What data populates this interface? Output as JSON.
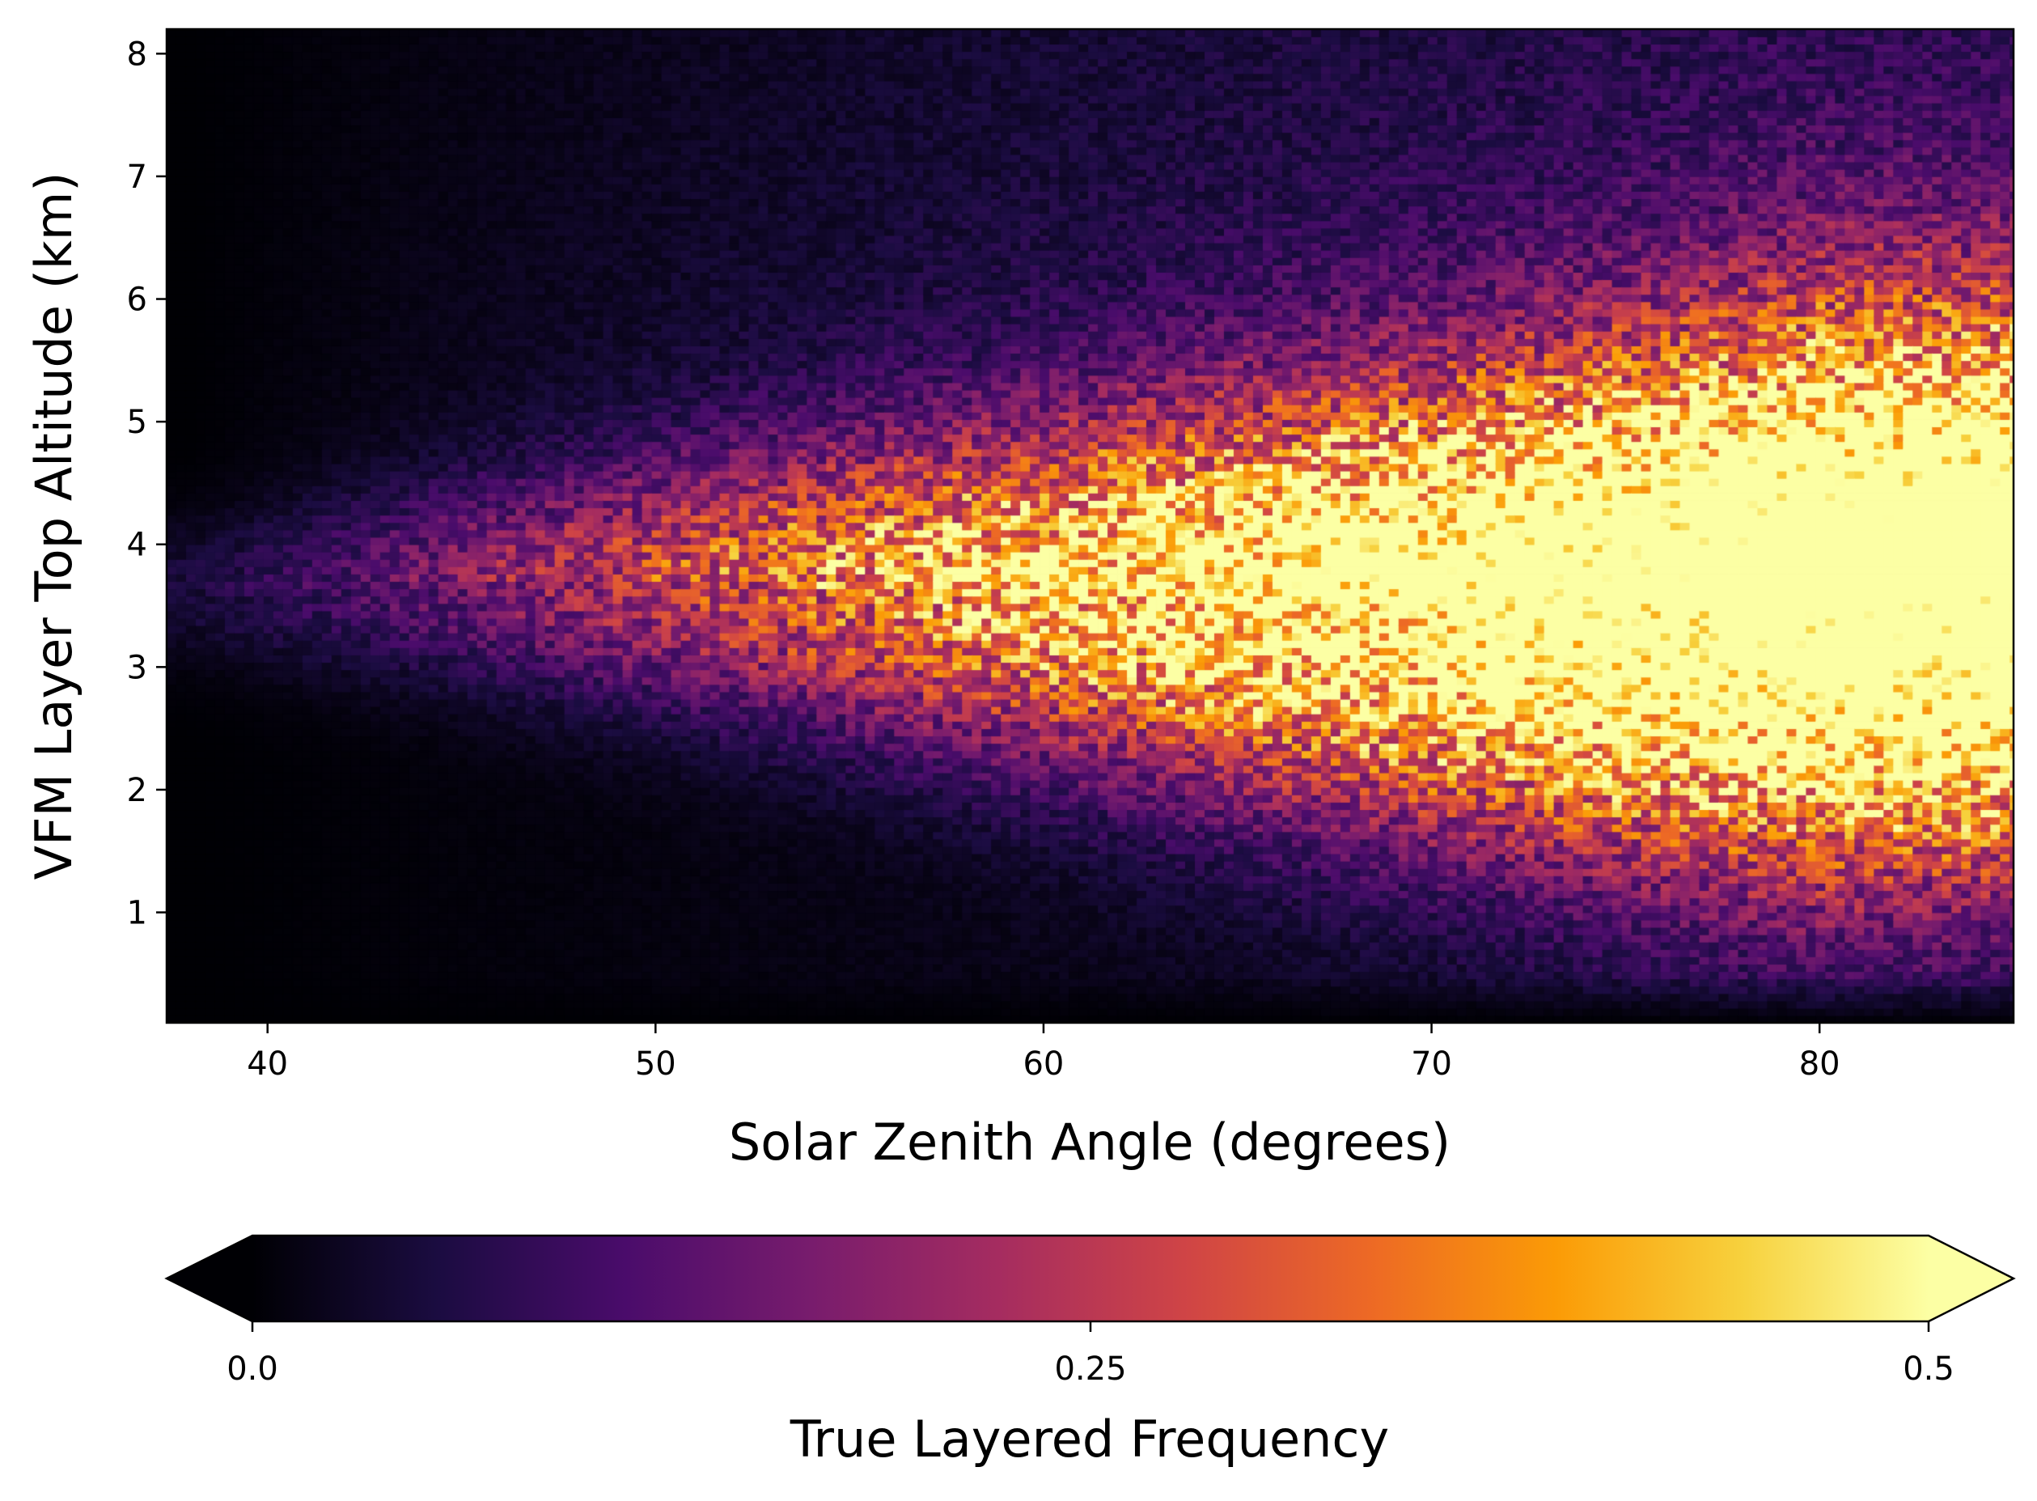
{
  "chart_data": {
    "type": "heatmap",
    "title": "",
    "xlabel": "Solar Zenith Angle (degrees)",
    "ylabel": "VFM Layer Top Altitude (km)",
    "xlim": [
      37.4,
      85.0
    ],
    "ylim": [
      0.1,
      8.2
    ],
    "x_bin_width_deg": 0.25,
    "y_bin_width_km": 0.06,
    "x_ticks": [
      40,
      50,
      60,
      70,
      80
    ],
    "x_tick_labels": [
      "40",
      "50",
      "60",
      "70",
      "80"
    ],
    "y_ticks": [
      1,
      2,
      3,
      4,
      5,
      6,
      7,
      8
    ],
    "y_tick_labels": [
      "1",
      "2",
      "3",
      "4",
      "5",
      "6",
      "7",
      "8"
    ],
    "colorbar": {
      "label": "True Layered Frequency",
      "colormap": "inferno",
      "vmin": 0.0,
      "vmax": 0.5,
      "extend": "both",
      "orientation": "horizontal",
      "ticks": [
        0.0,
        0.25,
        0.5
      ],
      "tick_labels": [
        "0.0",
        "0.25",
        "0.5"
      ]
    },
    "field_description": {
      "peak_altitude_km": 3.6,
      "peak_sza_range_deg": [
        70,
        85
      ],
      "peak_value": 0.5,
      "low_value_region": "SZA < 45 deg and altitude < 1 km",
      "grid": false
    },
    "summary_by_sza": [
      {
        "sza": 40,
        "center_alt_km": 3.5,
        "max_frequency": 0.06
      },
      {
        "sza": 45,
        "center_alt_km": 3.4,
        "max_frequency": 0.16
      },
      {
        "sza": 50,
        "center_alt_km": 3.6,
        "max_frequency": 0.3
      },
      {
        "sza": 55,
        "center_alt_km": 3.5,
        "max_frequency": 0.42
      },
      {
        "sza": 60,
        "center_alt_km": 3.3,
        "max_frequency": 0.44
      },
      {
        "sza": 65,
        "center_alt_km": 3.2,
        "max_frequency": 0.45
      },
      {
        "sza": 70,
        "center_alt_km": 3.4,
        "max_frequency": 0.5
      },
      {
        "sza": 75,
        "center_alt_km": 3.5,
        "max_frequency": 0.5
      },
      {
        "sza": 80,
        "center_alt_km": 3.6,
        "max_frequency": 0.5
      },
      {
        "sza": 85,
        "center_alt_km": 3.7,
        "max_frequency": 0.5
      }
    ]
  },
  "colors": {
    "inferno_stops": [
      "#000004",
      "#1b0c41",
      "#4a0c6b",
      "#781c6d",
      "#a52c60",
      "#cf4446",
      "#ed6925",
      "#fb9b06",
      "#f7d13d",
      "#fcffa4"
    ]
  }
}
